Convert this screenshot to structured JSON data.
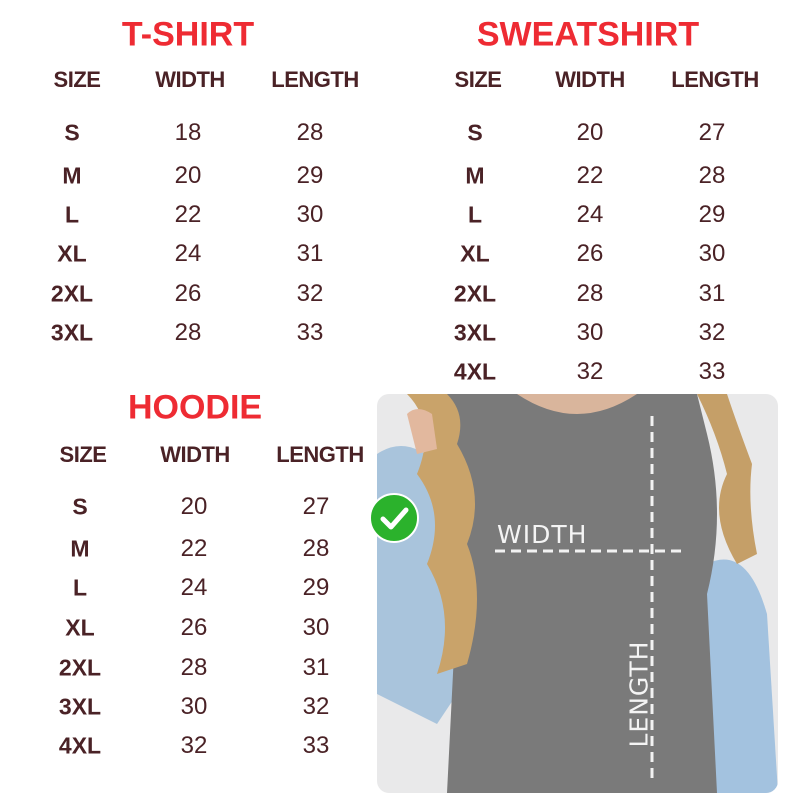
{
  "tshirt": {
    "title": "T-SHIRT",
    "headers": [
      "SIZE",
      "WIDTH",
      "LENGTH"
    ],
    "rows": [
      {
        "size": "S",
        "width": "18",
        "length": "28"
      },
      {
        "size": "M",
        "width": "20",
        "length": "29"
      },
      {
        "size": "L",
        "width": "22",
        "length": "30"
      },
      {
        "size": "XL",
        "width": "24",
        "length": "31"
      },
      {
        "size": "2XL",
        "width": "26",
        "length": "32"
      },
      {
        "size": "3XL",
        "width": "28",
        "length": "33"
      }
    ]
  },
  "sweatshirt": {
    "title": "SWEATSHIRT",
    "headers": [
      "SIZE",
      "WIDTH",
      "LENGTH"
    ],
    "rows": [
      {
        "size": "S",
        "width": "20",
        "length": "27"
      },
      {
        "size": "M",
        "width": "22",
        "length": "28"
      },
      {
        "size": "L",
        "width": "24",
        "length": "29"
      },
      {
        "size": "XL",
        "width": "26",
        "length": "30"
      },
      {
        "size": "2XL",
        "width": "28",
        "length": "31"
      },
      {
        "size": "3XL",
        "width": "30",
        "length": "32"
      },
      {
        "size": "4XL",
        "width": "32",
        "length": "33"
      }
    ]
  },
  "hoodie": {
    "title": "HOODIE",
    "headers": [
      "SIZE",
      "WIDTH",
      "LENGTH"
    ],
    "rows": [
      {
        "size": "S",
        "width": "20",
        "length": "27"
      },
      {
        "size": "M",
        "width": "22",
        "length": "28"
      },
      {
        "size": "L",
        "width": "24",
        "length": "29"
      },
      {
        "size": "XL",
        "width": "26",
        "length": "30"
      },
      {
        "size": "2XL",
        "width": "28",
        "length": "31"
      },
      {
        "size": "3XL",
        "width": "30",
        "length": "32"
      },
      {
        "size": "4XL",
        "width": "32",
        "length": "33"
      }
    ]
  },
  "photo": {
    "width_label": "WIDTH",
    "length_label": "LENGTH",
    "badge_icon": "check-circle-icon"
  },
  "colors": {
    "title": "#ee2b33",
    "text": "#4a2226",
    "badge": "#2bb22c"
  }
}
